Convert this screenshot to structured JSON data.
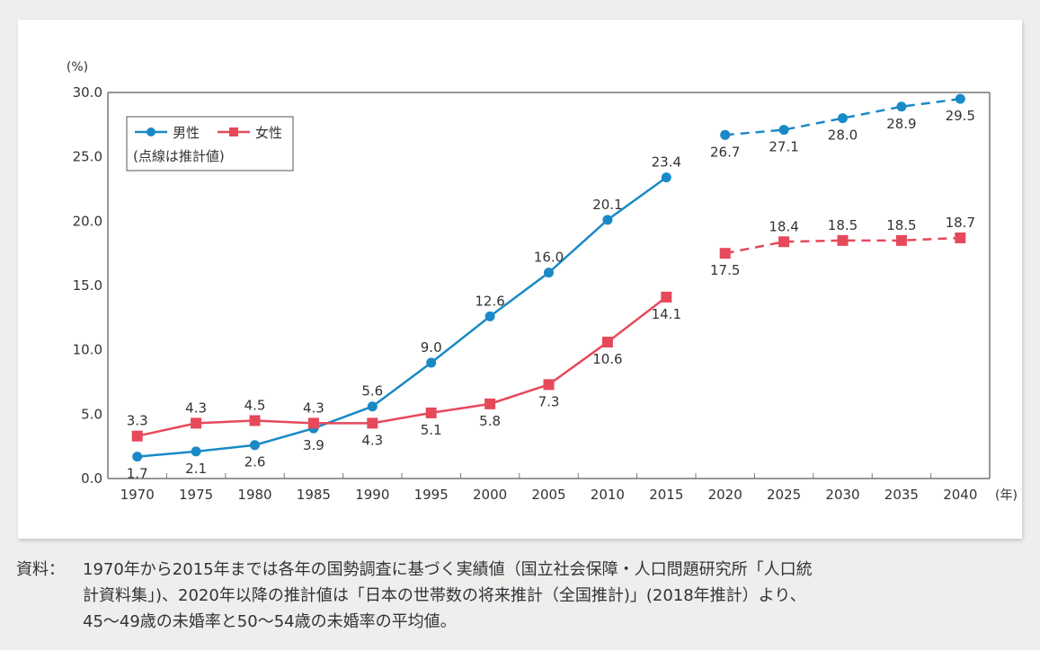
{
  "chart_data": {
    "type": "line",
    "title": "",
    "xlabel": "(年)",
    "ylabel": "(%)",
    "x": [
      1970,
      1975,
      1980,
      1985,
      1990,
      1995,
      2000,
      2005,
      2010,
      2015,
      2020,
      2025,
      2030,
      2035,
      2040
    ],
    "x_tick_labels": [
      "1970",
      "1975",
      "1980",
      "1985",
      "1990",
      "1995",
      "2000",
      "2005",
      "2010",
      "2015",
      "2020",
      "2025",
      "2030",
      "2035",
      "2040"
    ],
    "ylim": [
      0,
      30
    ],
    "y_ticks": [
      0,
      5,
      10,
      15,
      20,
      25,
      30
    ],
    "y_tick_labels": [
      "0.0",
      "5.0",
      "10.0",
      "15.0",
      "20.0",
      "25.0",
      "30.0"
    ],
    "grid": false,
    "legend_position": "top-left",
    "legend_note": "(点線は推計値)",
    "series": [
      {
        "name": "男性",
        "color": "#1a8ac6",
        "marker": "circle",
        "actual": {
          "x": [
            1970,
            1975,
            1980,
            1985,
            1990,
            1995,
            2000,
            2005,
            2010,
            2015
          ],
          "values": [
            1.7,
            2.1,
            2.6,
            3.9,
            5.6,
            9.0,
            12.6,
            16.0,
            20.1,
            23.4
          ],
          "labels": [
            "1.7",
            "2.1",
            "2.6",
            "3.9",
            "5.6",
            "9.0",
            "12.6",
            "16.0",
            "20.1",
            "23.4"
          ],
          "label_pos": [
            "below",
            "below",
            "below",
            "below",
            "above",
            "above",
            "above",
            "above",
            "above",
            "above"
          ]
        },
        "projected": {
          "x": [
            2020,
            2025,
            2030,
            2035,
            2040
          ],
          "values": [
            26.7,
            27.1,
            28.0,
            28.9,
            29.5
          ],
          "labels": [
            "26.7",
            "27.1",
            "28.0",
            "28.9",
            "29.5"
          ],
          "label_pos": [
            "below",
            "below",
            "below",
            "below",
            "below"
          ]
        }
      },
      {
        "name": "女性",
        "color": "#e6495a",
        "marker": "square",
        "actual": {
          "x": [
            1970,
            1975,
            1980,
            1985,
            1990,
            1995,
            2000,
            2005,
            2010,
            2015
          ],
          "values": [
            3.3,
            4.3,
            4.5,
            4.3,
            4.3,
            5.1,
            5.8,
            7.3,
            10.6,
            14.1
          ],
          "labels": [
            "3.3",
            "4.3",
            "4.5",
            "4.3",
            "4.3",
            "5.1",
            "5.8",
            "7.3",
            "10.6",
            "14.1"
          ],
          "label_pos": [
            "above",
            "above",
            "above",
            "above",
            "below",
            "below",
            "below",
            "below",
            "below",
            "below"
          ]
        },
        "projected": {
          "x": [
            2020,
            2025,
            2030,
            2035,
            2040
          ],
          "values": [
            17.5,
            18.4,
            18.5,
            18.5,
            18.7
          ],
          "labels": [
            "17.5",
            "18.4",
            "18.5",
            "18.5",
            "18.7"
          ],
          "label_pos": [
            "below",
            "above",
            "above",
            "above",
            "above"
          ]
        }
      }
    ]
  },
  "note": {
    "head": "資料：",
    "lines": [
      "1970年から2015年までは各年の国勢調査に基づく実績値（国立社会保障・人口問題研究所「人口統",
      "計資料集」)、2020年以降の推計値は「日本の世帯数の将来推計（全国推計)」(2018年推計）より、",
      "45〜49歳の未婚率と50〜54歳の未婚率の平均値。"
    ]
  }
}
